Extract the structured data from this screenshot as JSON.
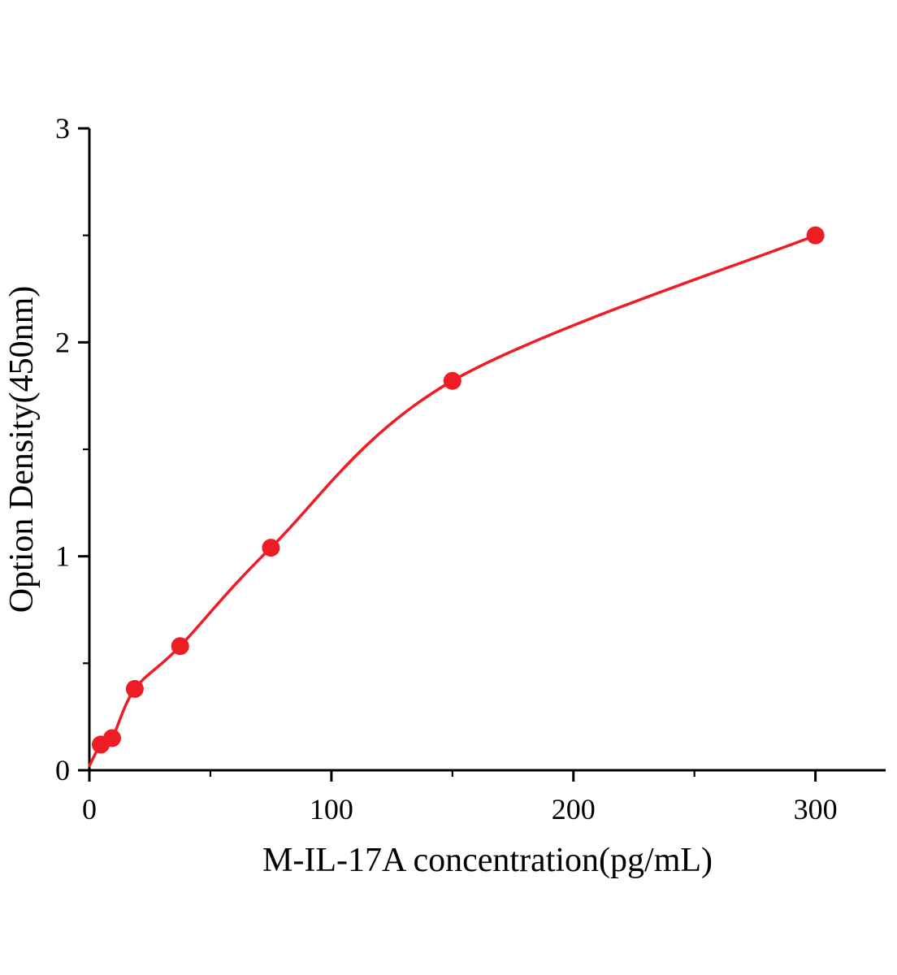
{
  "chart_data": {
    "type": "scatter",
    "title": "",
    "xlabel": "M-IL-17A concentration(pg/mL)",
    "ylabel": "Option Density(450nm)",
    "x": [
      4.69,
      9.38,
      18.75,
      37.5,
      75,
      150,
      300
    ],
    "y": [
      0.12,
      0.15,
      0.38,
      0.58,
      1.04,
      1.82,
      2.5
    ],
    "curve_start": {
      "x": 0,
      "y": 0.02
    },
    "xlim": [
      0,
      329
    ],
    "ylim": [
      0,
      3
    ],
    "x_major_ticks": [
      0,
      100,
      200,
      300
    ],
    "x_minor_step": 50,
    "y_major_ticks": [
      0,
      1,
      2,
      3
    ],
    "y_minor_step": 0.5,
    "line_color": "#ee1c25",
    "marker_color": "#ee1c25",
    "marker_radius": 11,
    "axis_color": "#000000",
    "legend": "none",
    "grid": "off"
  }
}
